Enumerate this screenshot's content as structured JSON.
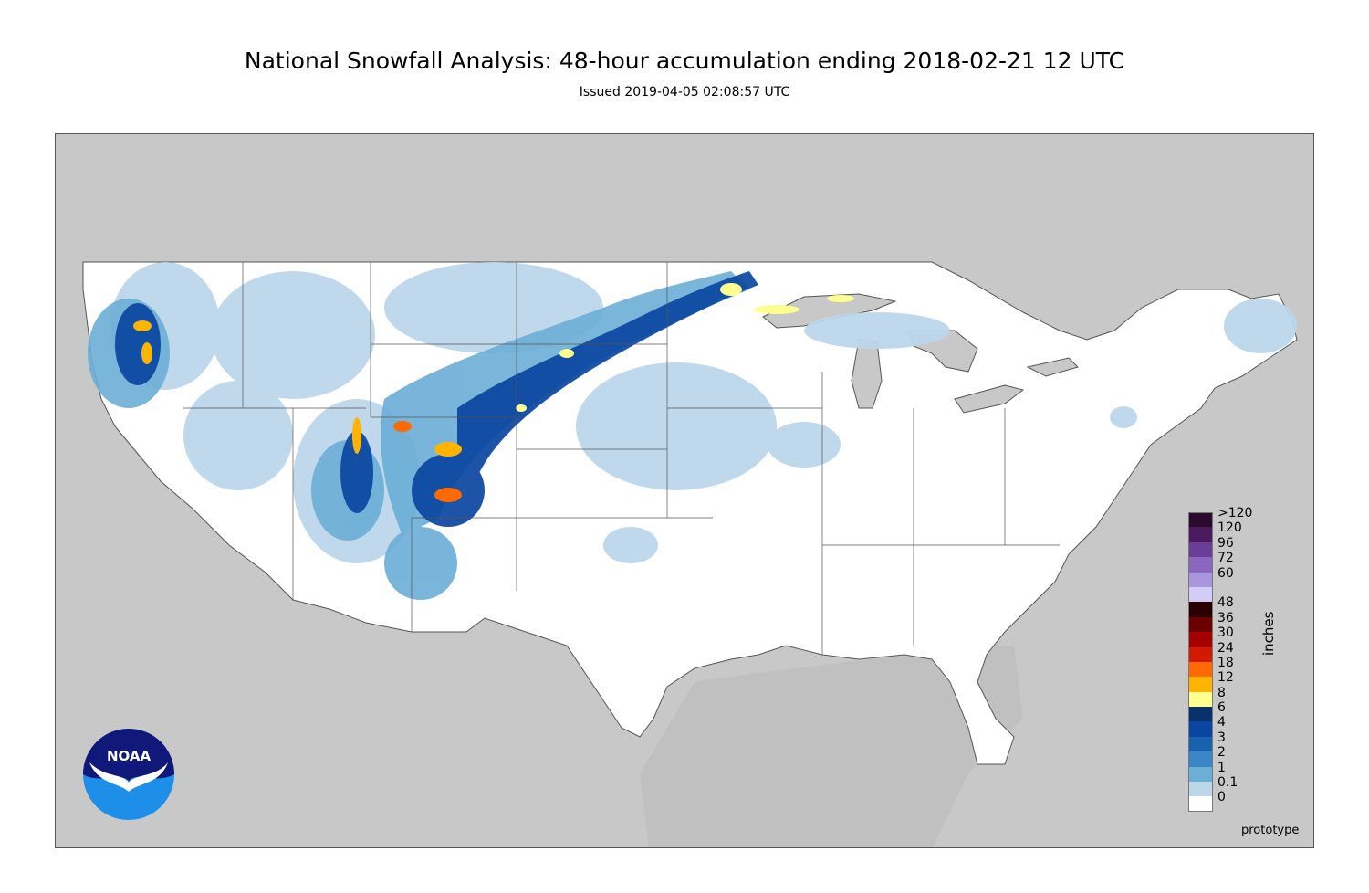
{
  "header": {
    "title": "National Snowfall Analysis: 48-hour accumulation ending 2018-02-21 12 UTC",
    "issued": "Issued 2019-04-05 02:08:57 UTC"
  },
  "legend": {
    "units": "inches",
    "items": [
      {
        "label": ">120",
        "color": "#2b0a2e"
      },
      {
        "label": "120",
        "color": "#4b1a5e"
      },
      {
        "label": "96",
        "color": "#6a3d96"
      },
      {
        "label": "72",
        "color": "#8a66bf"
      },
      {
        "label": "60",
        "color": "#a897dd"
      },
      {
        "label": "",
        "color": "#d2cdf7"
      },
      {
        "label": "48",
        "color": "#2b0000"
      },
      {
        "label": "36",
        "color": "#6b0000"
      },
      {
        "label": "30",
        "color": "#a50000"
      },
      {
        "label": "24",
        "color": "#d11a00"
      },
      {
        "label": "18",
        "color": "#ff6a00"
      },
      {
        "label": "12",
        "color": "#ffb400"
      },
      {
        "label": "8",
        "color": "#ffff90"
      },
      {
        "label": "6",
        "color": "#08306b"
      },
      {
        "label": "4",
        "color": "#0a46a0"
      },
      {
        "label": "3",
        "color": "#1861ad"
      },
      {
        "label": "2",
        "color": "#3a86c6"
      },
      {
        "label": "1",
        "color": "#6baed6"
      },
      {
        "label": "0.1",
        "color": "#bcd6ea"
      },
      {
        "label": "0",
        "color": "#ffffff"
      }
    ]
  },
  "logo": {
    "text": "NOAA"
  },
  "watermark": "prototype",
  "colors": {
    "land_outside": "#c8c8c8",
    "conus": "#ffffff",
    "border_lines": "#555555"
  }
}
